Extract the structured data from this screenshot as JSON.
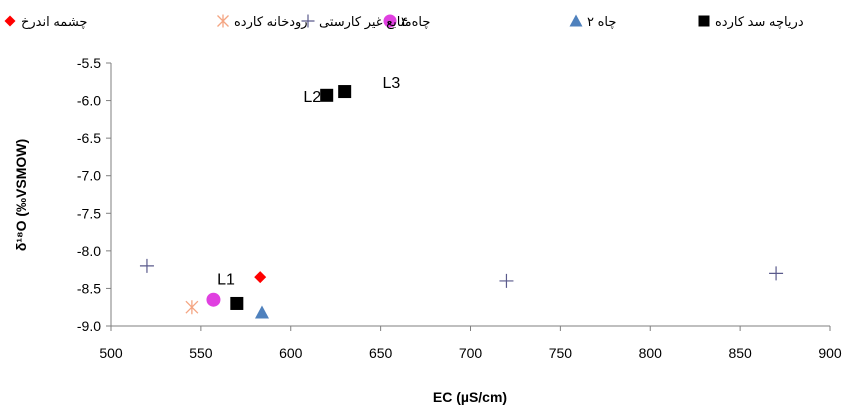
{
  "chart_data": {
    "type": "scatter",
    "title": "",
    "xlabel": "EC (µS/cm)",
    "ylabel": "δ¹⁸O (‰VSMOW)",
    "xlim": [
      500,
      900
    ],
    "ylim": [
      -9.0,
      -5.5
    ],
    "xticks": [
      "500",
      "550",
      "600",
      "650",
      "700",
      "750",
      "800",
      "850",
      "900"
    ],
    "yticks": [
      "-5.5",
      "-6.0",
      "-6.5",
      "-7.0",
      "-7.5",
      "-8.0",
      "-8.5",
      "-9.0"
    ],
    "grid": false,
    "legend_position": "top",
    "series": [
      {
        "name": "دریاچه سد کارده",
        "marker": "square",
        "color": "#000000",
        "points": [
          {
            "x": 570,
            "y": -8.7
          },
          {
            "x": 620,
            "y": -5.93
          },
          {
            "x": 630,
            "y": -5.88
          }
        ]
      },
      {
        "name": "چاه ۲",
        "marker": "triangle",
        "color": "#4f81bd",
        "points": [
          {
            "x": 584,
            "y": -8.82
          }
        ]
      },
      {
        "name": "چاه ۴",
        "marker": "circle",
        "color": "#e040e0",
        "points": [
          {
            "x": 557,
            "y": -8.65
          }
        ]
      },
      {
        "name": "منابع غیر کارستی",
        "marker": "plus",
        "color": "#5a5a8c",
        "points": [
          {
            "x": 520,
            "y": -8.2
          },
          {
            "x": 720,
            "y": -8.4
          },
          {
            "x": 870,
            "y": -8.3
          }
        ]
      },
      {
        "name": "رودخانه کارده",
        "marker": "asterisk",
        "color": "#f4a582",
        "points": [
          {
            "x": 545,
            "y": -8.75
          }
        ]
      },
      {
        "name": "چشمه اندرخ",
        "marker": "diamond",
        "color": "#ff0000",
        "points": [
          {
            "x": 583,
            "y": -8.35
          }
        ]
      }
    ],
    "annotations": [
      {
        "text": "L1",
        "x": 564,
        "y": -8.45
      },
      {
        "text": "L2",
        "x": 612,
        "y": -6.02
      },
      {
        "text": "L3",
        "x": 656,
        "y": -5.83
      }
    ]
  }
}
